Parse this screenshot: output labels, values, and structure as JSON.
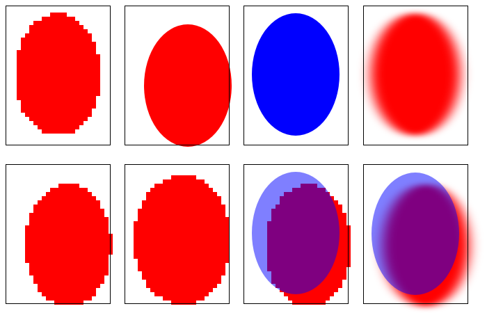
{
  "panels": [
    {
      "layers": [
        {
          "color": "#ff0000",
          "render": "pixelated"
        }
      ]
    },
    {
      "layers": [
        {
          "color": "#ff0000",
          "render": "smooth"
        }
      ]
    },
    {
      "layers": [
        {
          "color": "#0000ff",
          "render": "smooth"
        }
      ]
    },
    {
      "layers": [
        {
          "color": "#ff0000",
          "render": "blurred"
        }
      ]
    },
    {
      "layers": [
        {
          "color": "#ff0000",
          "render": "pixelated"
        }
      ]
    },
    {
      "layers": [
        {
          "color": "#ff0000",
          "render": "pixelated"
        }
      ]
    },
    {
      "layers": [
        {
          "color": "#ff0000",
          "render": "pixelated"
        },
        {
          "color": "#0000ff",
          "render": "translucent"
        }
      ]
    },
    {
      "layers": [
        {
          "color": "#ff0000",
          "render": "blurred"
        },
        {
          "color": "#0000ff",
          "render": "translucent"
        }
      ]
    }
  ]
}
